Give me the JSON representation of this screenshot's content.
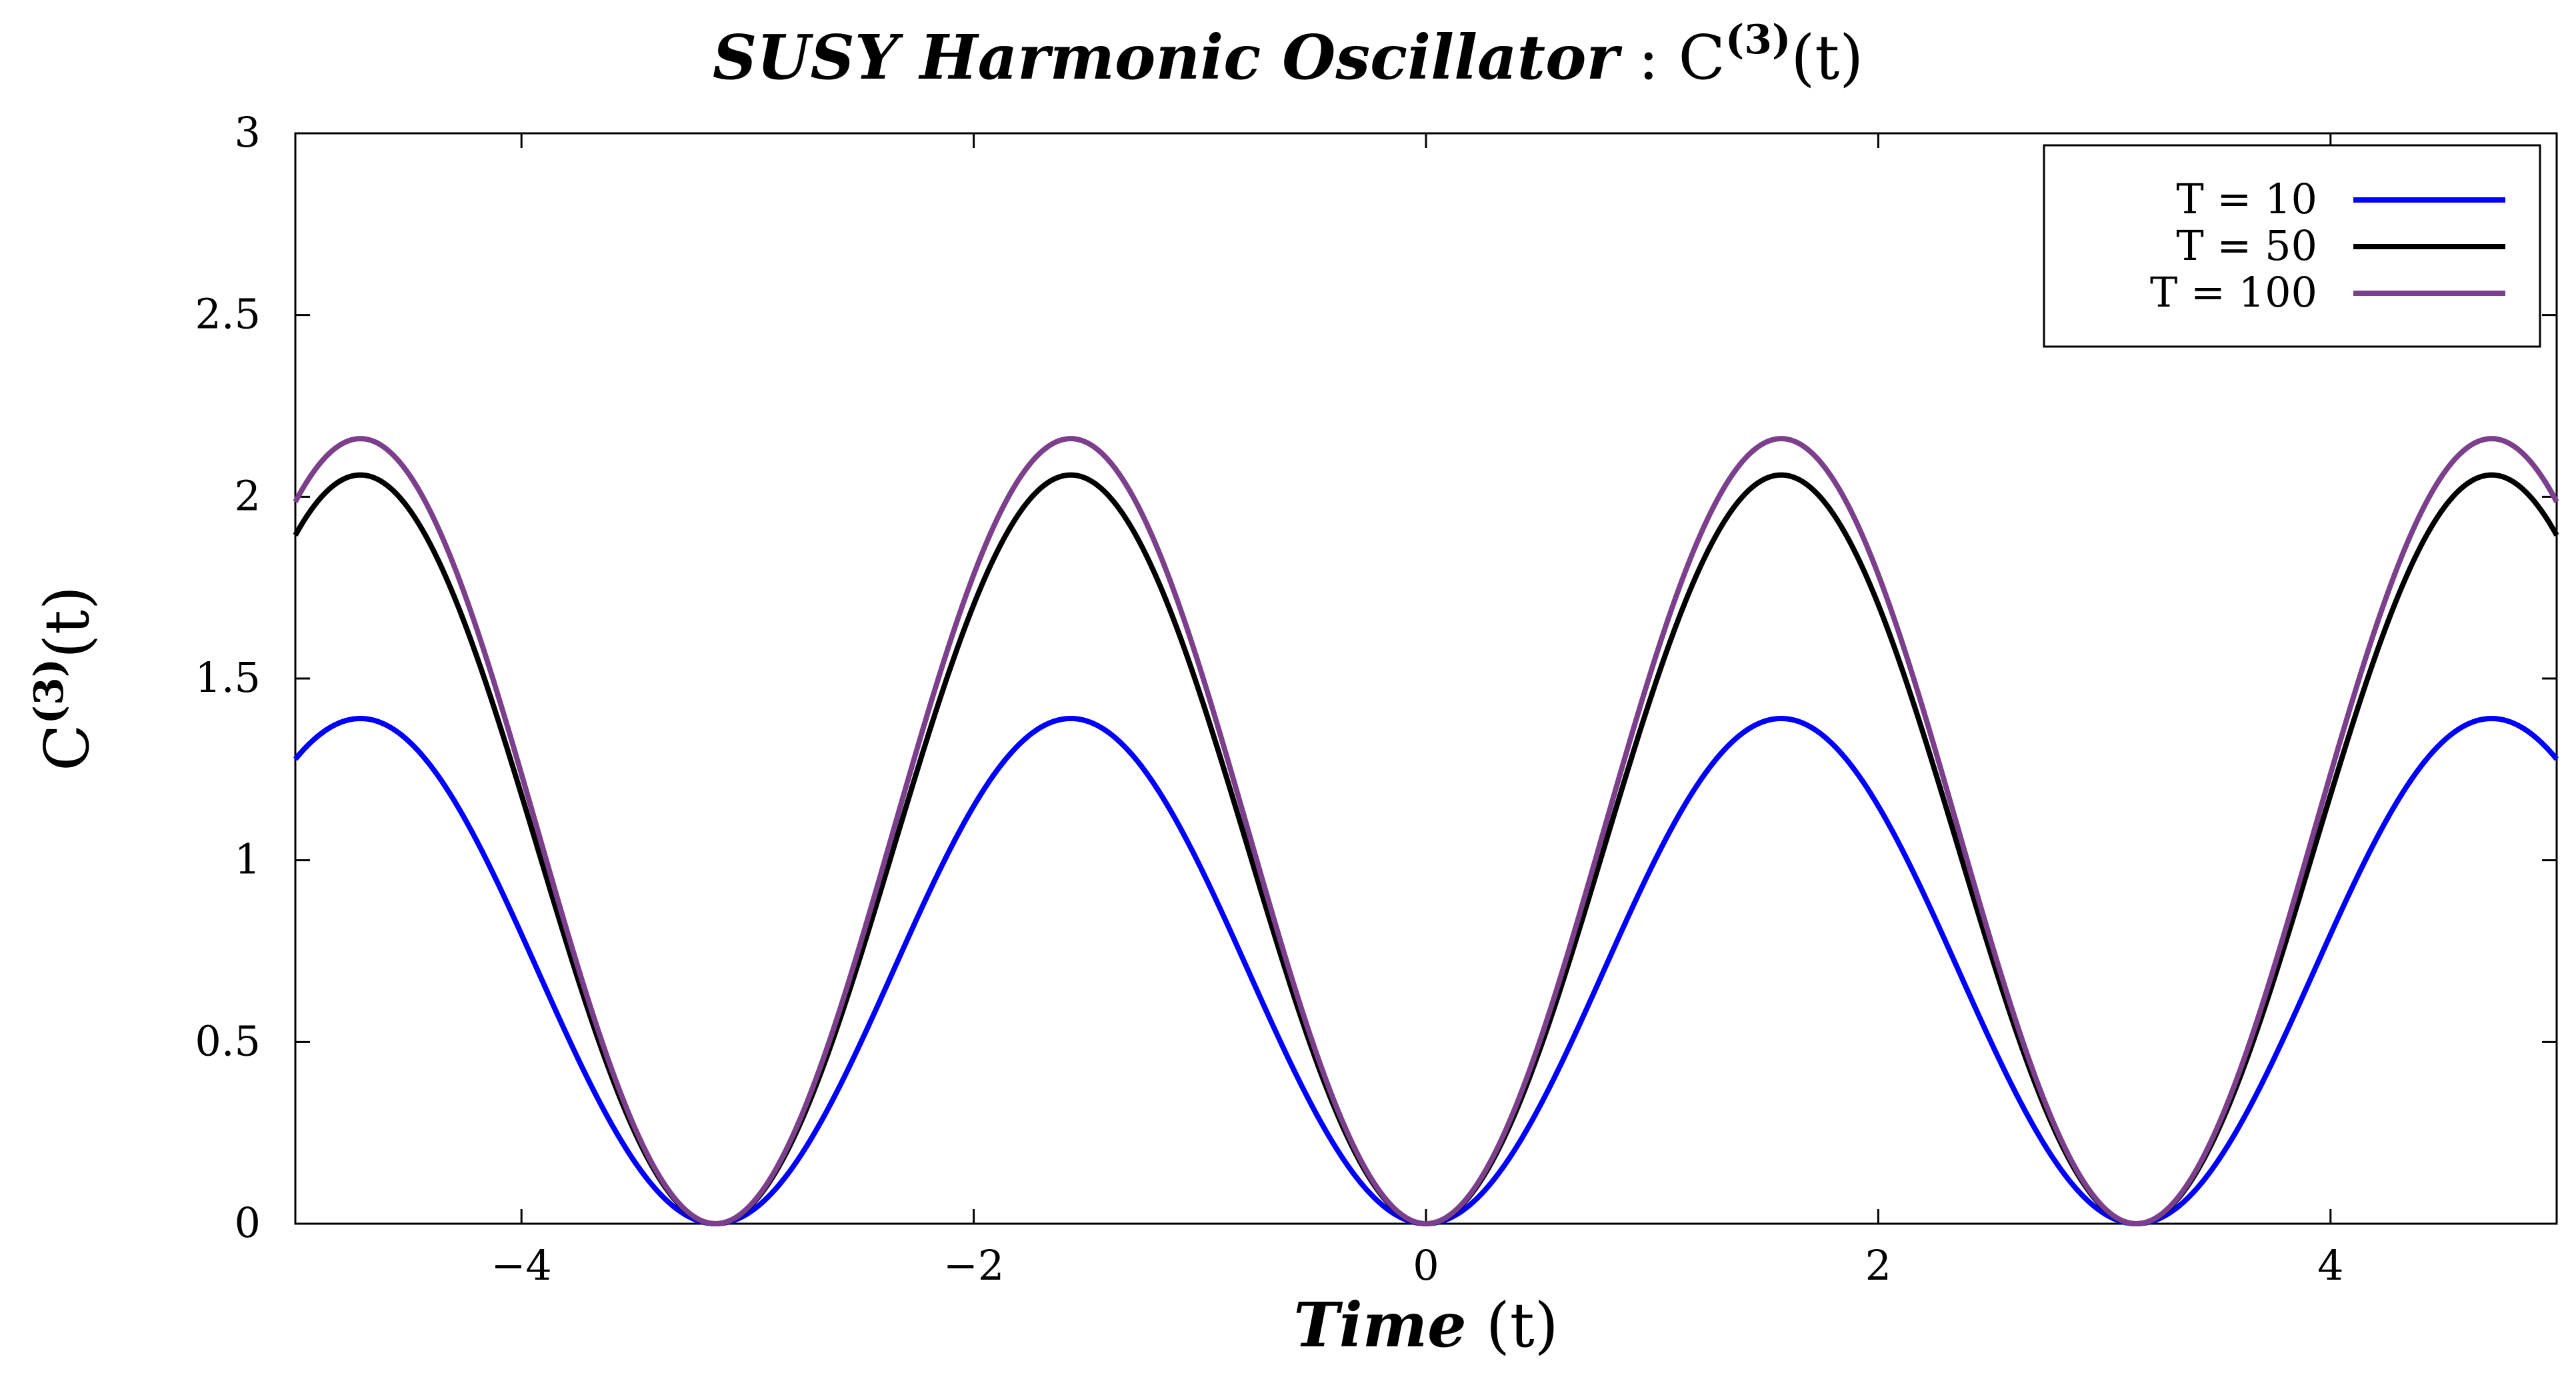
{
  "chart_data": {
    "type": "line",
    "title": {
      "italic_part": "SUSY Harmonic Oscillator",
      "separator": " : ",
      "math_base": "C",
      "math_sup": "(3)",
      "math_arg": "(t)"
    },
    "xlabel": {
      "italic_part": "Time",
      "rest": " (t)"
    },
    "ylabel": {
      "base": "C",
      "sup": "(3)",
      "arg": "(t)"
    },
    "xlim": [
      -5,
      5
    ],
    "ylim": [
      0,
      3
    ],
    "x_ticks": [
      -4,
      -2,
      0,
      2,
      4
    ],
    "x_tick_labels": [
      "−4",
      "−2",
      "0",
      "2",
      "4"
    ],
    "y_ticks": [
      0,
      0.5,
      1,
      1.5,
      2,
      2.5,
      3
    ],
    "y_tick_labels": [
      "0",
      "0.5",
      "1",
      "1.5",
      "2",
      "2.5",
      "3"
    ],
    "grid": false,
    "legend_position": "top-right",
    "series": [
      {
        "name": "T = 10",
        "color": "#0000ff",
        "peak": 1.39
      },
      {
        "name": "T = 50",
        "color": "#000000",
        "peak": 2.06
      },
      {
        "name": "T = 100",
        "color": "#7b3f8c",
        "peak": 2.16
      }
    ],
    "curve": "C(t) = peak · sin²(t)"
  }
}
